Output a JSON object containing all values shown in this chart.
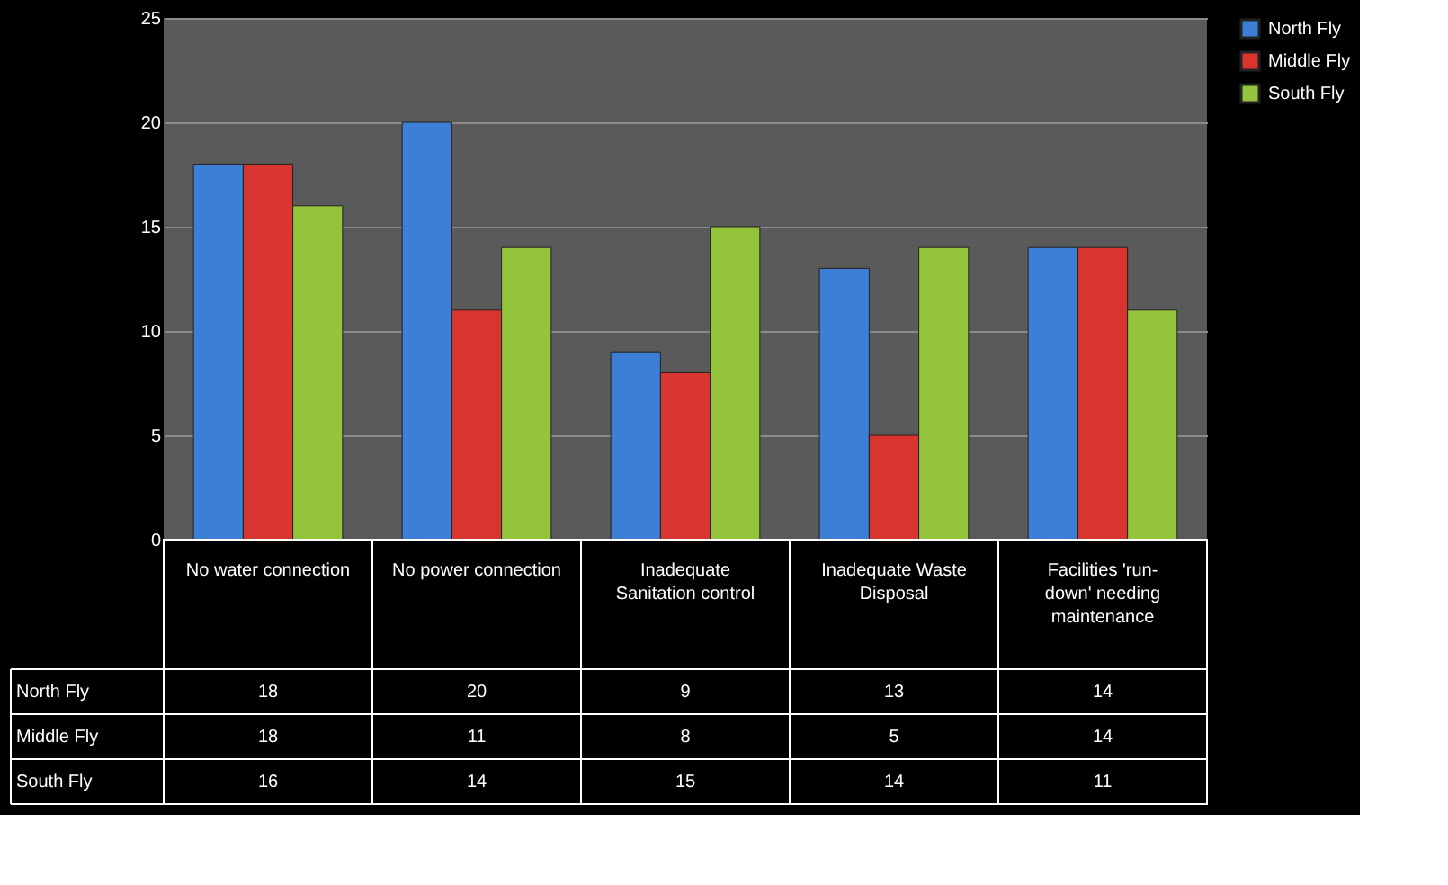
{
  "chart_data": {
    "type": "bar",
    "categories": [
      "No water connection",
      "No power connection",
      "Inadequate Sanitation control",
      "Inadequate Waste Disposal",
      "Facilities 'run-down' needing maintenance"
    ],
    "series": [
      {
        "name": "North Fly",
        "color": "#3d7fd6",
        "values": [
          18,
          20,
          9,
          13,
          14
        ]
      },
      {
        "name": "Middle Fly",
        "color": "#d93530",
        "values": [
          18,
          11,
          8,
          5,
          14
        ]
      },
      {
        "name": "South Fly",
        "color": "#93c43c",
        "values": [
          16,
          14,
          15,
          14,
          11
        ]
      }
    ],
    "ylim": [
      0,
      25
    ],
    "yticks": [
      0,
      5,
      10,
      15,
      20,
      25
    ],
    "grid": "y",
    "legend": "right",
    "data_labels": true
  }
}
